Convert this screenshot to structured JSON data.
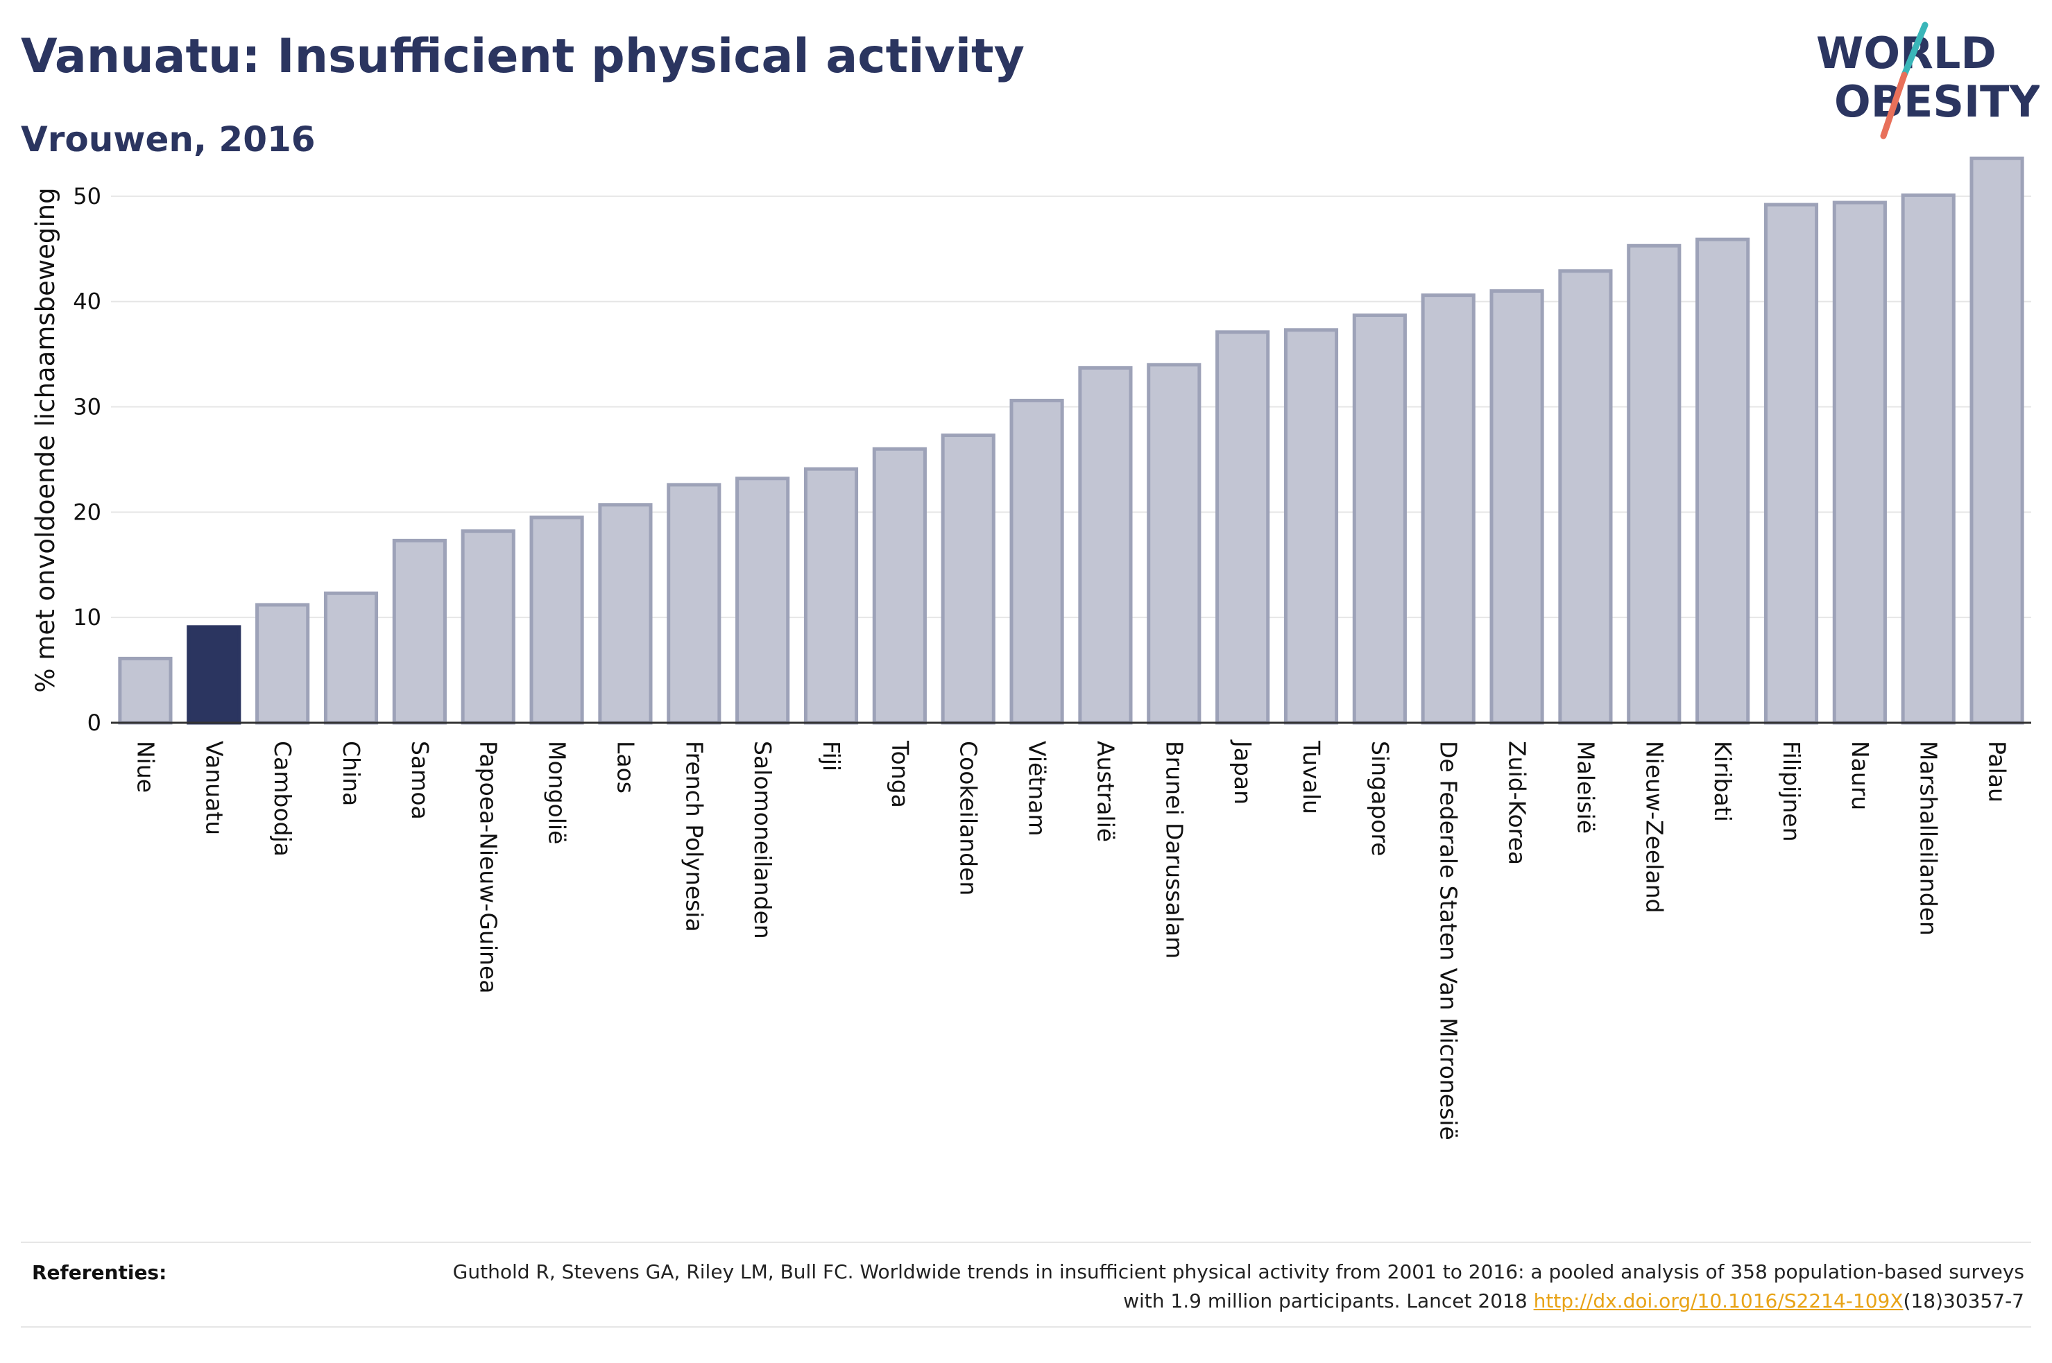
{
  "header": {
    "title": "Vanuatu: Insufficient physical activity",
    "subtitle": "Vrouwen, 2016"
  },
  "logo": {
    "line1": "WORLD",
    "line2": "OBESITY",
    "colors": {
      "text": "#2b3560",
      "slash_top": "#3ab6b9",
      "slash_bottom": "#e8705a"
    }
  },
  "chart_data": {
    "type": "bar",
    "ylabel": "% met onvoldoende lichaamsbeweging",
    "xlabel": "",
    "ylim": [
      0,
      55
    ],
    "yticks": [
      0,
      10,
      20,
      30,
      40,
      50
    ],
    "grid": true,
    "highlight": "Vanuatu",
    "colors": {
      "bar": "#c2c5d3",
      "bar_border": "#9da2b8",
      "highlight": "#2b3560"
    },
    "categories": [
      "Niue",
      "Vanuatu",
      "Cambodja",
      "China",
      "Samoa",
      "Papoea-Nieuw-Guinea",
      "Mongolië",
      "Laos",
      "French Polynesia",
      "Salomoneilanden",
      "Fiji",
      "Tonga",
      "Cookeilanden",
      "Viëtnam",
      "Australië",
      "Brunei Darussalam",
      "Japan",
      "Tuvalu",
      "Singapore",
      "De Federale Staten Van Micronesië",
      "Zuid-Korea",
      "Maleisië",
      "Nieuw-Zeeland",
      "Kiribati",
      "Filipijnen",
      "Nauru",
      "Marshalleilanden",
      "Palau"
    ],
    "values": [
      6.1,
      9.1,
      11.2,
      12.3,
      17.3,
      18.2,
      19.5,
      20.7,
      22.6,
      23.2,
      24.1,
      26.0,
      27.3,
      30.6,
      33.7,
      34.0,
      37.1,
      37.3,
      38.7,
      40.6,
      41.0,
      42.9,
      45.3,
      45.9,
      49.2,
      49.4,
      50.1,
      53.6
    ]
  },
  "references": {
    "label": "Referenties:",
    "text_before": "Guthold R, Stevens GA, Riley LM, Bull FC. Worldwide trends in insufficient physical activity from 2001 to 2016: a pooled analysis of 358 population-based surveys with 1.9 million participants. Lancet 2018 ",
    "link": "http://dx.doi.org/10.1016/S2214-109X",
    "text_after": "(18)30357-7"
  }
}
